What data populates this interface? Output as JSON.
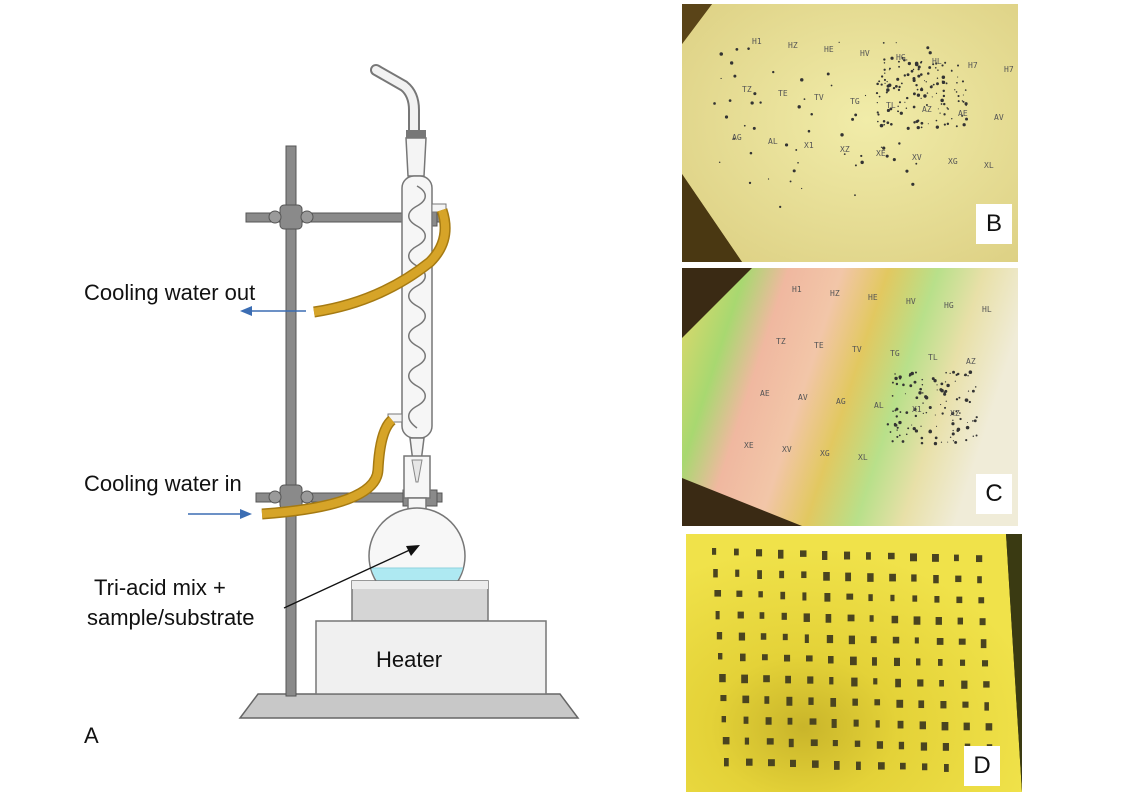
{
  "labels": {
    "cooling_out": "Cooling water out",
    "cooling_in": "Cooling water in",
    "sample_line1": "Tri-acid mix +",
    "sample_line2": "sample/substrate",
    "heater": "Heater",
    "panel_a": "A",
    "panel_b": "B",
    "panel_c": "C",
    "panel_d": "D"
  },
  "colors": {
    "tube": "#d4a020",
    "stand": "#7a7a7a",
    "arrow": "#3b6db3",
    "liquid": "#aee9f2",
    "wafer_b": "#ece79c",
    "wafer_d": "#e9d838"
  },
  "wafer_marks": {
    "b": [
      "H1",
      "HZ",
      "HE",
      "HV",
      "HG",
      "HL",
      "H7",
      "H7",
      "TZ",
      "TE",
      "TV",
      "TG",
      "TL",
      "AZ",
      "AE",
      "AV",
      "AG",
      "AL",
      "X1",
      "XZ",
      "XE",
      "XV",
      "XG",
      "XL"
    ],
    "c": [
      "H1",
      "HZ",
      "HE",
      "HV",
      "HG",
      "HL",
      "TZ",
      "TE",
      "TV",
      "TG",
      "TL",
      "AZ",
      "AE",
      "AV",
      "AG",
      "AL",
      "X1",
      "XZ",
      "XE",
      "XV",
      "XG",
      "XL"
    ]
  }
}
